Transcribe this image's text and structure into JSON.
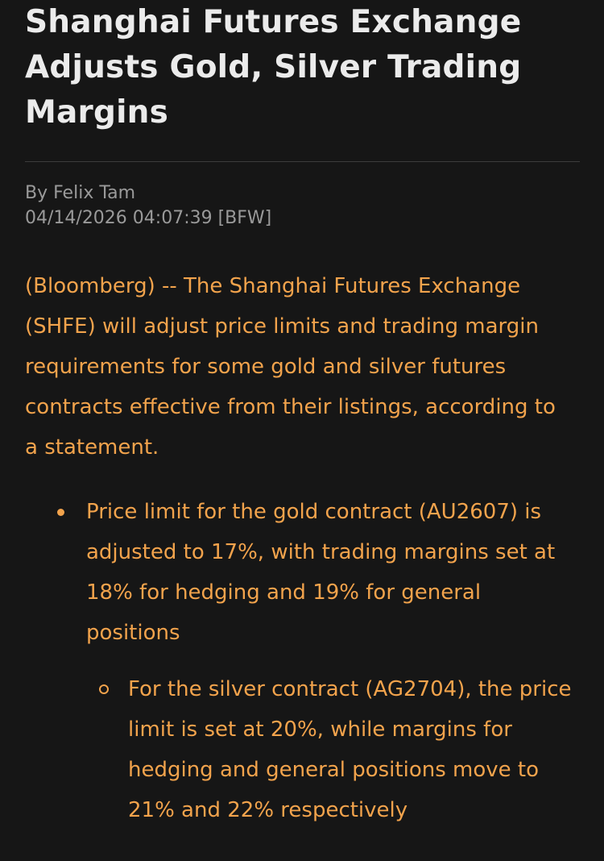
{
  "article": {
    "headline": "Shanghai Futures Exchange Adjusts Gold, Silver Trading Margins",
    "byline": "By Felix Tam",
    "timestamp": "04/14/2026 04:07:39 [BFW]",
    "lede": "(Bloomberg) -- The Shanghai Futures Exchange (SHFE) will adjust price limits and trading margin requirements for some gold and silver futures contracts effective from their listings, according to a statement.",
    "bullets": [
      {
        "text": "Price limit for the gold contract (AU2607) is adjusted to 17%, with trading margins set at 18% for hedging and 19% for general positions",
        "sub_bullets": [
          {
            "text": "For the silver contract (AG2704), the price limit is set at 20%, while margins for hedging and general positions move to 21% and 22% respectively"
          }
        ]
      }
    ]
  },
  "colors": {
    "background": "#161616",
    "headline": "#ebebeb",
    "meta": "#9a9a9a",
    "body": "#f2a34c",
    "divider": "#3d3d3d"
  }
}
